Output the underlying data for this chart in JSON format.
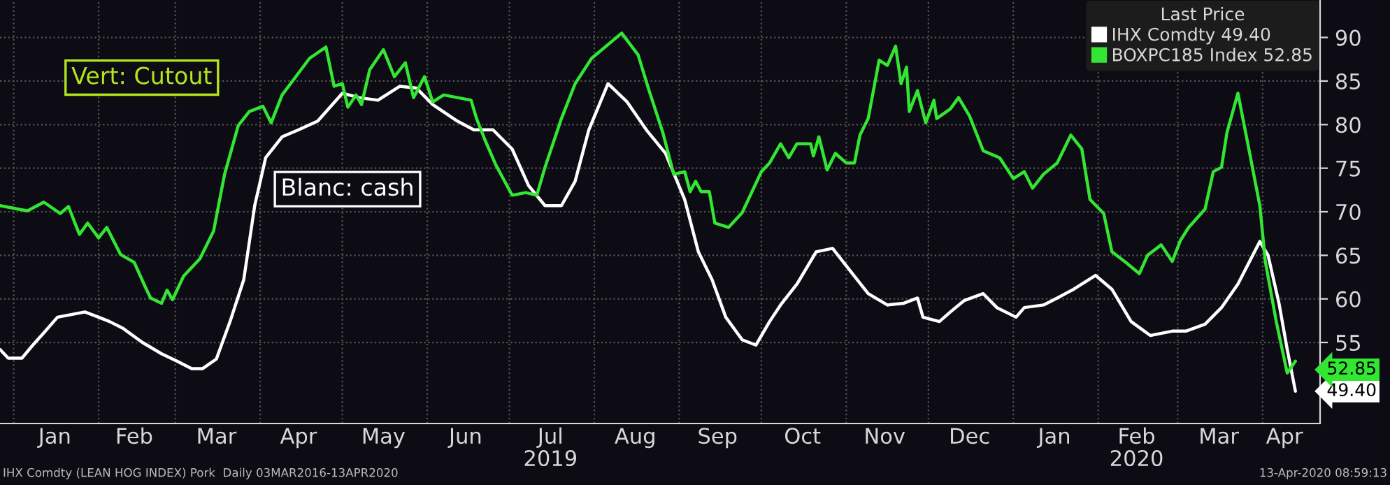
{
  "chart_data": {
    "type": "line",
    "legend_title": "Last Price",
    "series": [
      {
        "name": "IHX Comdty 49.40",
        "color": "#ffffff",
        "x": [
          "2018-12-27",
          "2018-12-30",
          "2019-01-04",
          "2019-01-08",
          "2019-01-12",
          "2019-01-17",
          "2019-01-22",
          "2019-01-27",
          "2019-02-01",
          "2019-02-05",
          "2019-02-10",
          "2019-02-17",
          "2019-02-24",
          "2019-03-02",
          "2019-03-07",
          "2019-03-11",
          "2019-03-16",
          "2019-03-21",
          "2019-03-26",
          "2019-03-30",
          "2019-04-03",
          "2019-04-09",
          "2019-04-15",
          "2019-04-22",
          "2019-05-01",
          "2019-05-07",
          "2019-05-14",
          "2019-05-22",
          "2019-05-28",
          "2019-06-03",
          "2019-06-12",
          "2019-06-18",
          "2019-06-25",
          "2019-07-02",
          "2019-07-08",
          "2019-07-14",
          "2019-07-20",
          "2019-07-25",
          "2019-07-30",
          "2019-08-06",
          "2019-08-13",
          "2019-08-20",
          "2019-08-27",
          "2019-09-03",
          "2019-09-08",
          "2019-09-13",
          "2019-09-18",
          "2019-09-24",
          "2019-09-29",
          "2019-10-04",
          "2019-10-08",
          "2019-10-14",
          "2019-10-21",
          "2019-10-27",
          "2019-11-02",
          "2019-11-09",
          "2019-11-16",
          "2019-11-22",
          "2019-11-27",
          "2019-11-29",
          "2019-12-05",
          "2019-12-09",
          "2019-12-14",
          "2019-12-21",
          "2019-12-26",
          "2020-01-02",
          "2020-01-05",
          "2020-01-12",
          "2020-01-17",
          "2020-01-23",
          "2020-01-31",
          "2020-02-06",
          "2020-02-13",
          "2020-02-20",
          "2020-02-28",
          "2020-03-04",
          "2020-03-11",
          "2020-03-17",
          "2020-03-23",
          "2020-03-31",
          "2020-04-03",
          "2020-04-07",
          "2020-04-10",
          "2020-04-13"
        ],
        "values": [
          54.2,
          53.2,
          53.2,
          54.7,
          56.1,
          57.9,
          58.2,
          58.5,
          57.9,
          57.4,
          56.6,
          55.0,
          53.7,
          52.8,
          52.0,
          52.0,
          53.1,
          57.4,
          62.2,
          70.7,
          76.2,
          78.6,
          79.4,
          80.4,
          83.6,
          83.1,
          82.8,
          84.4,
          84.2,
          82.3,
          80.4,
          79.4,
          79.4,
          77.2,
          73.0,
          70.7,
          70.7,
          73.5,
          79.4,
          84.7,
          82.6,
          79.4,
          76.7,
          71.4,
          65.4,
          62.2,
          57.9,
          55.3,
          54.7,
          57.4,
          59.3,
          61.7,
          65.4,
          65.8,
          63.4,
          60.6,
          59.3,
          59.5,
          60.1,
          57.9,
          57.4,
          58.5,
          59.8,
          60.6,
          59.0,
          57.9,
          59.0,
          59.3,
          60.1,
          61.1,
          62.7,
          61.1,
          57.4,
          55.8,
          56.3,
          56.3,
          57.1,
          59.0,
          61.7,
          66.6,
          65.0,
          59.5,
          54.2,
          49.4
        ]
      },
      {
        "name": "BOXPC185 Index 52.85",
        "color": "#33e633",
        "x": [
          "2018-12-27",
          "2019-01-06",
          "2019-01-12",
          "2019-01-18",
          "2019-01-21",
          "2019-01-25",
          "2019-01-28",
          "2019-02-01",
          "2019-02-04",
          "2019-02-09",
          "2019-02-14",
          "2019-02-18",
          "2019-02-20",
          "2019-02-24",
          "2019-02-26",
          "2019-02-28",
          "2019-03-04",
          "2019-03-10",
          "2019-03-15",
          "2019-03-19",
          "2019-03-24",
          "2019-03-28",
          "2019-04-02",
          "2019-04-05",
          "2019-04-09",
          "2019-04-14",
          "2019-04-19",
          "2019-04-25",
          "2019-04-28",
          "2019-05-01",
          "2019-05-03",
          "2019-05-06",
          "2019-05-08",
          "2019-05-11",
          "2019-05-16",
          "2019-05-20",
          "2019-05-24",
          "2019-05-27",
          "2019-05-31",
          "2019-06-03",
          "2019-06-07",
          "2019-06-12",
          "2019-06-17",
          "2019-06-19",
          "2019-06-22",
          "2019-06-26",
          "2019-07-02",
          "2019-07-07",
          "2019-07-11",
          "2019-07-14",
          "2019-07-20",
          "2019-07-25",
          "2019-07-31",
          "2019-08-11",
          "2019-08-17",
          "2019-08-21",
          "2019-08-26",
          "2019-08-30",
          "2019-09-03",
          "2019-09-05",
          "2019-09-07",
          "2019-09-09",
          "2019-09-12",
          "2019-09-14",
          "2019-09-19",
          "2019-09-24",
          "2019-10-01",
          "2019-10-04",
          "2019-10-08",
          "2019-10-11",
          "2019-10-14",
          "2019-10-19",
          "2019-10-20",
          "2019-10-22",
          "2019-10-25",
          "2019-10-28",
          "2019-11-01",
          "2019-11-04",
          "2019-11-06",
          "2019-11-09",
          "2019-11-13",
          "2019-11-16",
          "2019-11-19",
          "2019-11-21",
          "2019-11-23",
          "2019-11-24",
          "2019-11-27",
          "2019-11-30",
          "2019-12-03",
          "2019-12-04",
          "2019-12-09",
          "2019-12-12",
          "2019-12-16",
          "2019-12-21",
          "2019-12-27",
          "2020-01-01",
          "2020-01-05",
          "2020-01-08",
          "2020-01-12",
          "2020-01-17",
          "2020-01-22",
          "2020-01-26",
          "2020-01-29",
          "2020-02-03",
          "2020-02-06",
          "2020-02-11",
          "2020-02-16",
          "2020-02-19",
          "2020-02-24",
          "2020-02-28",
          "2020-03-02",
          "2020-03-05",
          "2020-03-11",
          "2020-03-14",
          "2020-03-17",
          "2020-03-19",
          "2020-03-23",
          "2020-03-26",
          "2020-03-31",
          "2020-04-02",
          "2020-04-06",
          "2020-04-10",
          "2020-04-13"
        ],
        "values": [
          70.7,
          70.1,
          71.1,
          69.8,
          70.6,
          67.4,
          68.7,
          67.0,
          68.2,
          65.1,
          64.2,
          61.4,
          60.1,
          59.5,
          61.0,
          59.9,
          62.6,
          64.6,
          67.8,
          74.3,
          79.9,
          81.5,
          82.1,
          80.2,
          83.4,
          85.5,
          87.6,
          88.9,
          84.4,
          84.7,
          82.0,
          83.4,
          82.3,
          86.3,
          88.6,
          85.5,
          87.1,
          83.1,
          85.5,
          82.6,
          83.4,
          83.1,
          82.8,
          80.7,
          78.3,
          75.4,
          71.9,
          72.2,
          71.9,
          75.1,
          80.7,
          84.7,
          87.6,
          90.5,
          88.0,
          83.9,
          79.1,
          74.3,
          74.6,
          72.3,
          73.5,
          72.3,
          72.3,
          68.7,
          68.2,
          69.9,
          74.6,
          75.6,
          77.8,
          76.2,
          77.8,
          77.8,
          76.4,
          78.6,
          74.8,
          76.7,
          75.6,
          75.6,
          78.8,
          80.7,
          87.4,
          86.8,
          89.0,
          84.7,
          86.6,
          81.5,
          83.9,
          80.2,
          82.8,
          80.7,
          81.8,
          83.1,
          81.0,
          77.0,
          76.2,
          73.8,
          74.6,
          72.7,
          74.3,
          75.6,
          78.8,
          77.2,
          71.4,
          69.8,
          65.4,
          64.2,
          62.9,
          65.0,
          66.2,
          64.3,
          66.7,
          68.2,
          70.3,
          74.6,
          75.1,
          79.1,
          83.6,
          78.8,
          70.7,
          64.3,
          57.4,
          51.5,
          52.85
        ]
      }
    ],
    "xlim": [
      "2018-12-27",
      "2020-04-22"
    ],
    "xticks": [
      {
        "value": "2019-01-01",
        "label": null
      },
      {
        "value": "2019-02-01",
        "label": null
      },
      {
        "value": "2019-03-01",
        "label": null
      },
      {
        "value": "2019-04-01",
        "label": null
      },
      {
        "value": "2019-05-01",
        "label": null
      },
      {
        "value": "2019-06-01",
        "label": null
      },
      {
        "value": "2019-07-01",
        "label": null
      },
      {
        "value": "2019-08-01",
        "label": null
      },
      {
        "value": "2019-09-01",
        "label": null
      },
      {
        "value": "2019-10-01",
        "label": null
      },
      {
        "value": "2019-11-01",
        "label": null
      },
      {
        "value": "2019-12-01",
        "label": null
      },
      {
        "value": "2020-01-01",
        "label": null
      },
      {
        "value": "2020-02-01",
        "label": null
      },
      {
        "value": "2020-03-01",
        "label": null
      },
      {
        "value": "2020-04-01",
        "label": null
      },
      {
        "value": "2019-01-16",
        "label": "Jan"
      },
      {
        "value": "2019-02-14",
        "label": "Feb"
      },
      {
        "value": "2019-03-16",
        "label": "Mar"
      },
      {
        "value": "2019-04-15",
        "label": "Apr"
      },
      {
        "value": "2019-05-16",
        "label": "May"
      },
      {
        "value": "2019-06-15",
        "label": "Jun"
      },
      {
        "value": "2019-07-16",
        "label": "Jul\n2019"
      },
      {
        "value": "2019-08-16",
        "label": "Aug"
      },
      {
        "value": "2019-09-15",
        "label": "Sep"
      },
      {
        "value": "2019-10-16",
        "label": "Oct"
      },
      {
        "value": "2019-11-15",
        "label": "Nov"
      },
      {
        "value": "2019-12-16",
        "label": "Dec"
      },
      {
        "value": "2020-01-16",
        "label": "Jan"
      },
      {
        "value": "2020-02-15",
        "label": "Feb\n2020"
      },
      {
        "value": "2020-03-16",
        "label": "Mar"
      },
      {
        "value": "2020-04-09",
        "label": "Apr"
      }
    ],
    "ylim": [
      45.7,
      94.3
    ],
    "yticks": [
      55,
      60,
      65,
      70,
      75,
      80,
      85,
      90
    ],
    "grid": true,
    "legend": "top right",
    "line_style": "solid",
    "annotations": [
      "Vert: Cutout",
      "Blanc: cash",
      "IHX Comdty (LEAN HOG INDEX) Pork  Daily 03MAR2016-13APR2020",
      "13-Apr-2020 08:59:13",
      {
        "text": "49.40",
        "x": "2020-04-13",
        "y": 49.4
      },
      {
        "text": "52.85",
        "x": "2020-04-13",
        "y": 52.85
      }
    ]
  }
}
